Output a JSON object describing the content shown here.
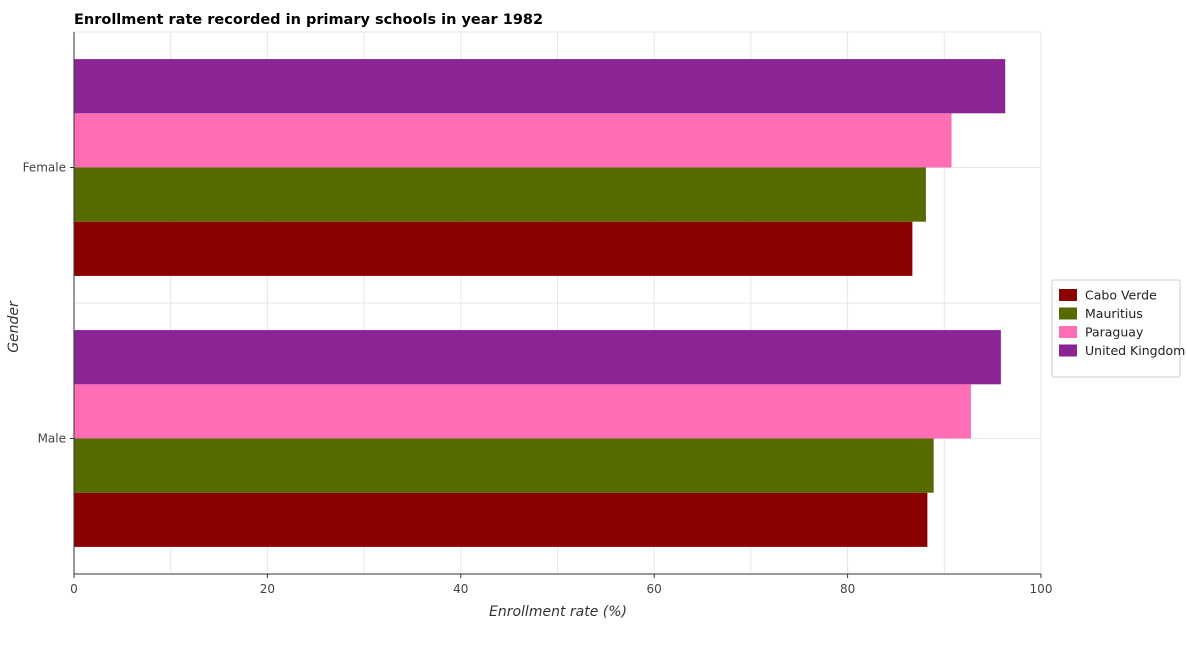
{
  "colors": {
    "series": [
      "#8b0000",
      "#556b00",
      "#ff6eb4",
      "#8b2494"
    ],
    "grid": "#e6e6e6",
    "axis": "#333333"
  },
  "chart_data": {
    "type": "bar",
    "orientation": "horizontal",
    "title": "Enrollment rate recorded in primary schools in year 1982",
    "xlabel": "Enrollment rate (%)",
    "ylabel": "Gender",
    "categories": [
      "Female",
      "Male"
    ],
    "xlim": [
      0,
      100
    ],
    "xticks": [
      0,
      20,
      40,
      60,
      80,
      100
    ],
    "grid": true,
    "legend_position": "right",
    "series": [
      {
        "name": "Cabo Verde",
        "values": [
          86.7,
          88.25
        ]
      },
      {
        "name": "Mauritius",
        "values": [
          88.1,
          88.9
        ]
      },
      {
        "name": "Paraguay",
        "values": [
          90.75,
          92.75
        ]
      },
      {
        "name": "United Kingdom",
        "values": [
          96.3,
          95.85
        ]
      }
    ]
  }
}
